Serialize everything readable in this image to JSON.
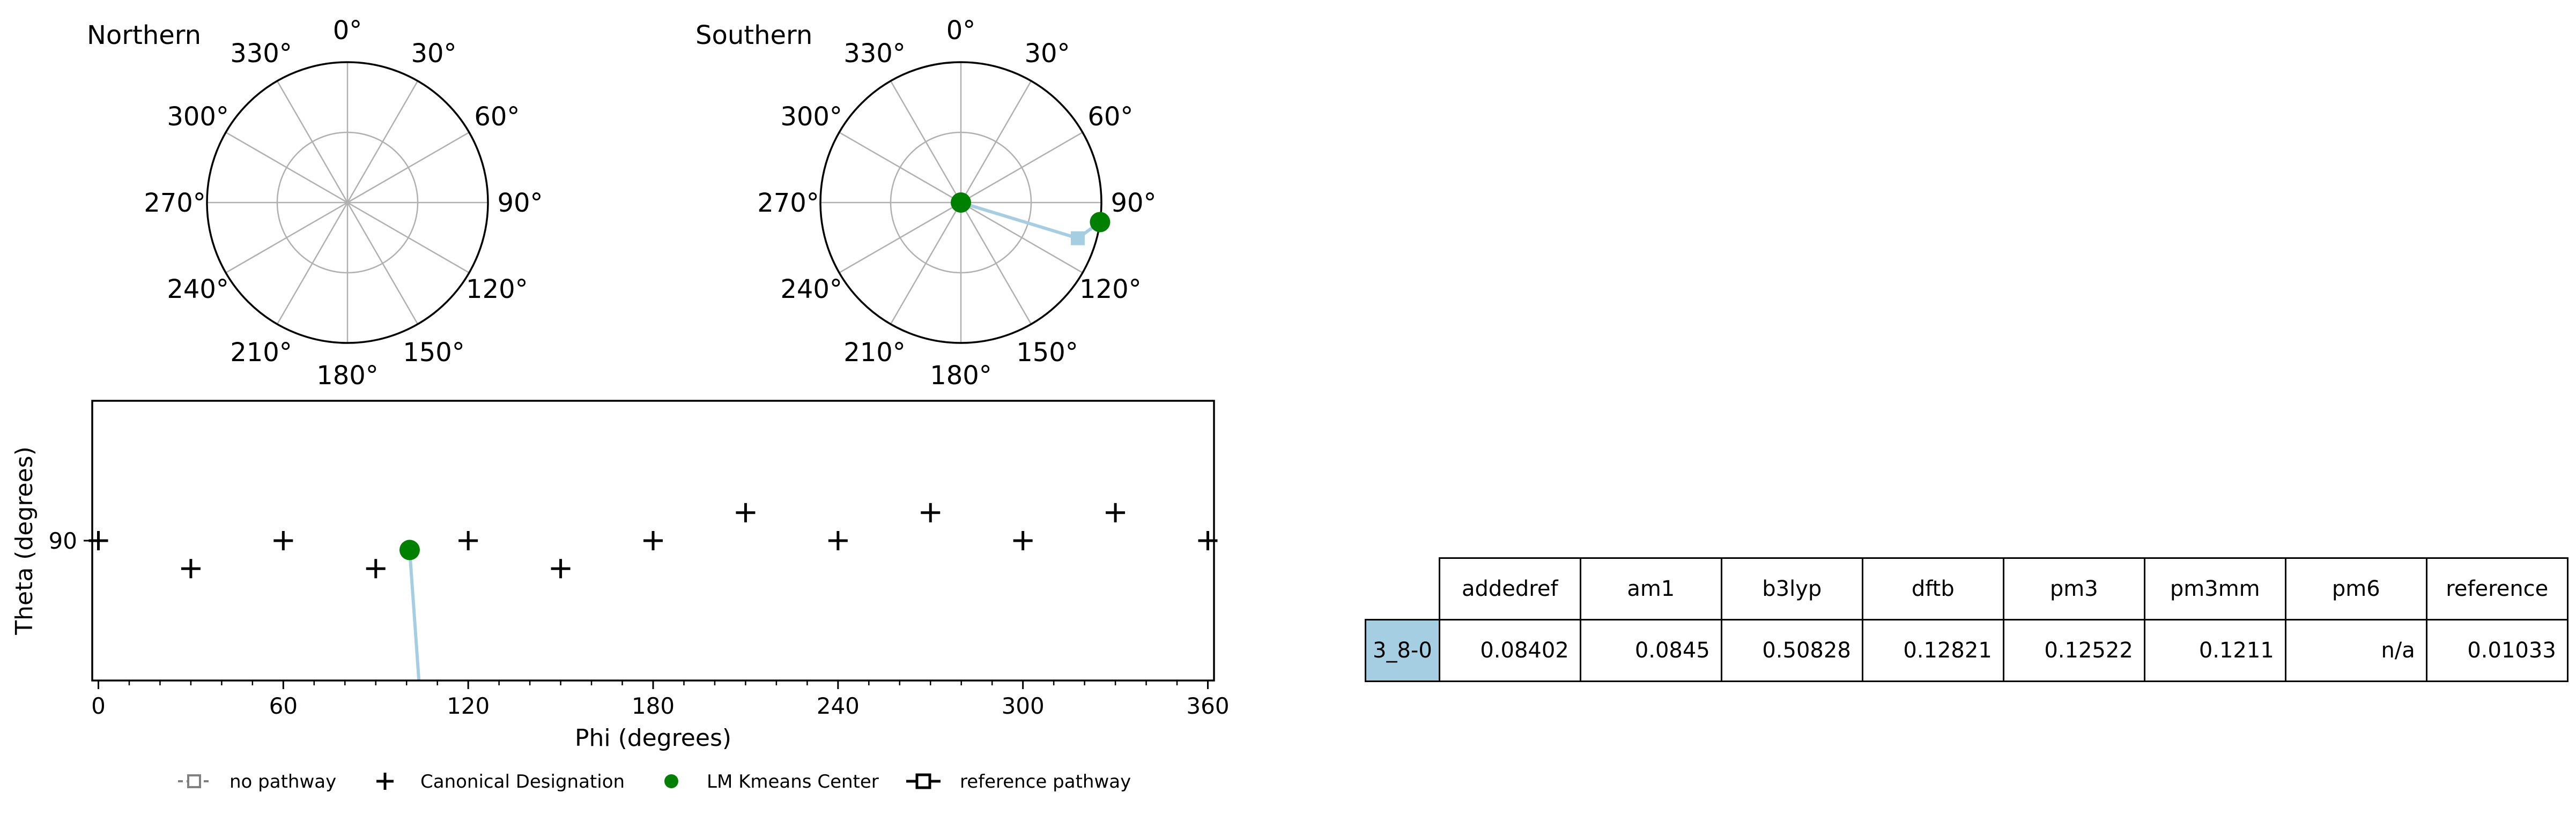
{
  "chart_data": [
    {
      "type": "polar",
      "title": "Northern",
      "angle_tick_labels": [
        "0°",
        "30°",
        "60°",
        "90°",
        "120°",
        "150°",
        "180°",
        "210°",
        "240°",
        "270°",
        "300°",
        "330°"
      ],
      "points": []
    },
    {
      "type": "polar",
      "title": "Southern",
      "angle_tick_labels": [
        "0°",
        "30°",
        "60°",
        "90°",
        "120°",
        "150°",
        "180°",
        "210°",
        "240°",
        "270°",
        "300°",
        "330°"
      ],
      "points": [
        {
          "series": "LM Kmeans Center",
          "phi": 0,
          "r": 0
        },
        {
          "series": "reference pathway",
          "phi": 107,
          "r": 0.87
        },
        {
          "series": "LM Kmeans Center",
          "phi": 98,
          "r": 1.0
        }
      ],
      "lines": [
        {
          "series": "reference pathway",
          "color": "#a6cee3",
          "path": [
            {
              "phi": 0,
              "r": 0
            },
            {
              "phi": 107,
              "r": 0.87
            },
            {
              "phi": 98,
              "r": 1.0
            }
          ]
        }
      ]
    },
    {
      "type": "scatter",
      "xlabel": "Phi (degrees)",
      "ylabel": "Theta (degrees)",
      "xlim": [
        -2,
        362
      ],
      "ylim": [
        60,
        120
      ],
      "x_ticks": [
        0,
        60,
        120,
        180,
        240,
        300,
        360
      ],
      "y_ticks": [
        90
      ],
      "series": [
        {
          "name": "Canonical Designation",
          "marker": "plus",
          "points": [
            [
              0,
              90
            ],
            [
              30,
              84
            ],
            [
              60,
              90
            ],
            [
              90,
              84
            ],
            [
              120,
              90
            ],
            [
              150,
              84
            ],
            [
              180,
              90
            ],
            [
              210,
              96
            ],
            [
              240,
              90
            ],
            [
              270,
              96
            ],
            [
              300,
              90
            ],
            [
              330,
              96
            ],
            [
              360,
              90
            ]
          ]
        },
        {
          "name": "LM Kmeans Center",
          "marker": "circle",
          "color": "#008000",
          "points": [
            [
              101,
              88
            ]
          ]
        }
      ],
      "lines": [
        {
          "series": "reference pathway",
          "color": "#a6cee3",
          "path": [
            [
              101,
              88
            ],
            [
              104,
              60
            ]
          ]
        }
      ],
      "legend": [
        {
          "label": "no pathway",
          "marker": "square-dashed"
        },
        {
          "label": "Canonical Designation",
          "marker": "plus"
        },
        {
          "label": "LM Kmeans Center",
          "marker": "circle"
        },
        {
          "label": "reference pathway",
          "marker": "square-solid"
        }
      ],
      "legend_position": "bottom"
    }
  ],
  "table": {
    "columns": [
      "addedref",
      "am1",
      "b3lyp",
      "dftb",
      "pm3",
      "pm3mm",
      "pm6",
      "reference"
    ],
    "rows": [
      {
        "label": "3_8-0",
        "label_color": "#a6cee3",
        "values": [
          "0.08402",
          "0.0845",
          "0.50828",
          "0.12821",
          "0.12522",
          "0.1211",
          "n/a",
          "0.01033"
        ]
      }
    ]
  }
}
